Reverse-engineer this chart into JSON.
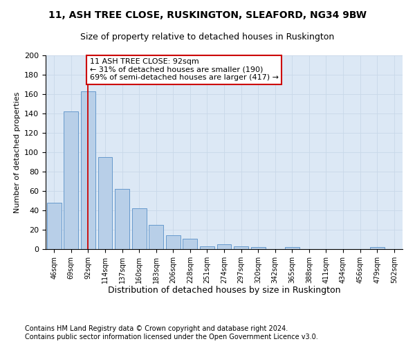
{
  "title": "11, ASH TREE CLOSE, RUSKINGTON, SLEAFORD, NG34 9BW",
  "subtitle": "Size of property relative to detached houses in Ruskington",
  "xlabel": "Distribution of detached houses by size in Ruskington",
  "ylabel": "Number of detached properties",
  "footer_line1": "Contains HM Land Registry data © Crown copyright and database right 2024.",
  "footer_line2": "Contains public sector information licensed under the Open Government Licence v3.0.",
  "categories": [
    "46sqm",
    "69sqm",
    "92sqm",
    "114sqm",
    "137sqm",
    "160sqm",
    "183sqm",
    "206sqm",
    "228sqm",
    "251sqm",
    "274sqm",
    "297sqm",
    "320sqm",
    "342sqm",
    "365sqm",
    "388sqm",
    "411sqm",
    "434sqm",
    "456sqm",
    "479sqm",
    "502sqm"
  ],
  "values": [
    48,
    142,
    163,
    95,
    62,
    42,
    25,
    14,
    11,
    3,
    5,
    3,
    2,
    0,
    2,
    0,
    0,
    0,
    0,
    2,
    0
  ],
  "bar_color": "#b8cfe8",
  "bar_edge_color": "#6699cc",
  "grid_color": "#c8d8e8",
  "bg_color": "#dce8f5",
  "vline_color": "#cc0000",
  "vline_x_idx": 2,
  "annotation_text": "11 ASH TREE CLOSE: 92sqm\n← 31% of detached houses are smaller (190)\n69% of semi-detached houses are larger (417) →",
  "annotation_box_color": "#cc0000",
  "ylim": [
    0,
    200
  ],
  "yticks": [
    0,
    20,
    40,
    60,
    80,
    100,
    120,
    140,
    160,
    180,
    200
  ],
  "title_fontsize": 10,
  "subtitle_fontsize": 9,
  "ylabel_fontsize": 8,
  "xtick_fontsize": 7,
  "ytick_fontsize": 8,
  "xlabel_fontsize": 9,
  "footer_fontsize": 7,
  "annot_fontsize": 8
}
